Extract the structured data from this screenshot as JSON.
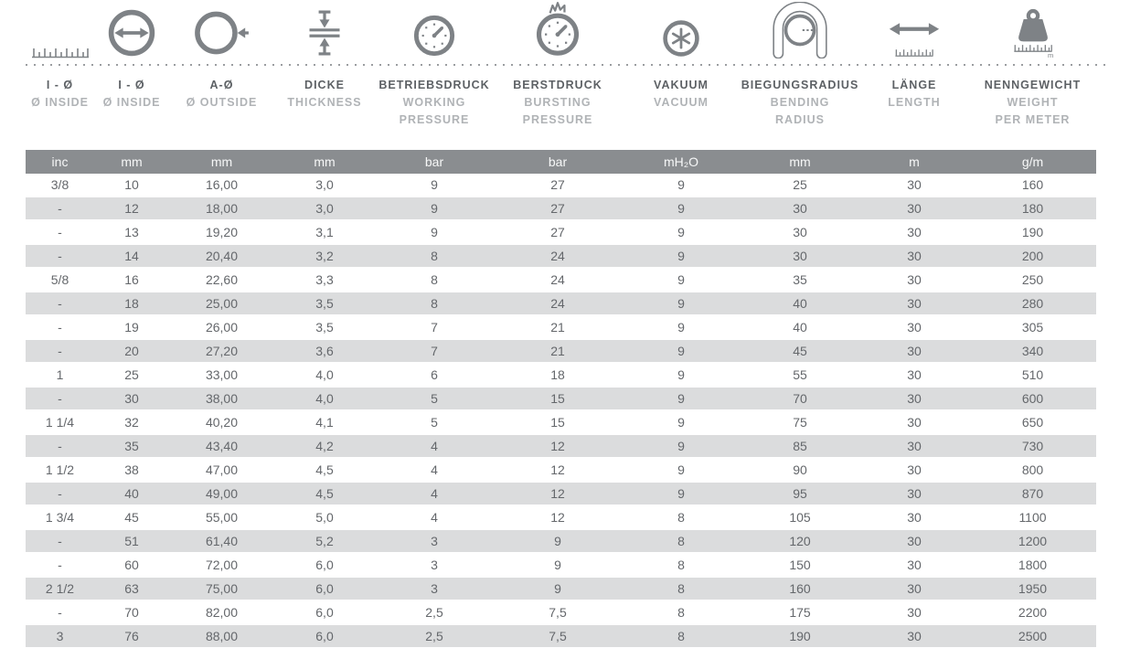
{
  "title": "Hose technical specification table",
  "colors": {
    "icon_gray": "#7e8286",
    "header_band_bg": "#8a8d90",
    "header_band_text": "#f7f8f8",
    "alt_row_bg": "#dbdcdd",
    "data_text": "#64676b",
    "label_de_text": "#5d6165",
    "label_en_text": "#b0b3b6"
  },
  "columns": [
    {
      "id": "inside-inc",
      "icon": "ruler-icon",
      "title_de": "I - Ø",
      "title_en": "Ø INSIDE",
      "unit": "inc"
    },
    {
      "id": "inside-mm",
      "icon": "inside-diameter-icon",
      "title_de": "I - Ø",
      "title_en": "Ø INSIDE",
      "unit": "mm"
    },
    {
      "id": "outside-mm",
      "icon": "outside-diameter-icon",
      "title_de": "A-Ø",
      "title_en": "Ø OUTSIDE",
      "unit": "mm"
    },
    {
      "id": "thickness",
      "icon": "thickness-icon",
      "title_de": "DICKE",
      "title_en": "THICKNESS",
      "unit": "mm"
    },
    {
      "id": "working-pressure",
      "icon": "pressure-gauge-icon",
      "title_de": "BETRIEBSDRUCK",
      "title_en": "WORKING\nPRESSURE",
      "unit": "bar"
    },
    {
      "id": "bursting-pressure",
      "icon": "bursting-gauge-icon",
      "title_de": "BERSTDRUCK",
      "title_en": "BURSTING\nPRESSURE",
      "unit": "bar"
    },
    {
      "id": "vacuum",
      "icon": "vacuum-icon",
      "title_de": "VAKUUM",
      "title_en": "VACUUM",
      "unit": "mH₂O"
    },
    {
      "id": "bending-radius",
      "icon": "bending-radius-icon",
      "title_de": "BIEGUNGSRADIUS",
      "title_en": "BENDING\nRADIUS",
      "unit": "mm"
    },
    {
      "id": "length",
      "icon": "length-icon",
      "title_de": "LÄNGE",
      "title_en": "LENGTH",
      "unit": "m"
    },
    {
      "id": "weight-per-meter",
      "icon": "weight-icon",
      "title_de": "NENNGEWICHT",
      "title_en": "WEIGHT\nPER METER",
      "unit": "g/m"
    }
  ],
  "weight_icon_ruler_label": "m",
  "rows": [
    [
      "3/8",
      "10",
      "16,00",
      "3,0",
      "9",
      "27",
      "9",
      "25",
      "30",
      "160"
    ],
    [
      "-",
      "12",
      "18,00",
      "3,0",
      "9",
      "27",
      "9",
      "30",
      "30",
      "180"
    ],
    [
      "-",
      "13",
      "19,20",
      "3,1",
      "9",
      "27",
      "9",
      "30",
      "30",
      "190"
    ],
    [
      "-",
      "14",
      "20,40",
      "3,2",
      "8",
      "24",
      "9",
      "30",
      "30",
      "200"
    ],
    [
      "5/8",
      "16",
      "22,60",
      "3,3",
      "8",
      "24",
      "9",
      "35",
      "30",
      "250"
    ],
    [
      "-",
      "18",
      "25,00",
      "3,5",
      "8",
      "24",
      "9",
      "40",
      "30",
      "280"
    ],
    [
      "-",
      "19",
      "26,00",
      "3,5",
      "7",
      "21",
      "9",
      "40",
      "30",
      "305"
    ],
    [
      "-",
      "20",
      "27,20",
      "3,6",
      "7",
      "21",
      "9",
      "45",
      "30",
      "340"
    ],
    [
      "1",
      "25",
      "33,00",
      "4,0",
      "6",
      "18",
      "9",
      "55",
      "30",
      "510"
    ],
    [
      "-",
      "30",
      "38,00",
      "4,0",
      "5",
      "15",
      "9",
      "70",
      "30",
      "600"
    ],
    [
      "1 1/4",
      "32",
      "40,20",
      "4,1",
      "5",
      "15",
      "9",
      "75",
      "30",
      "650"
    ],
    [
      "-",
      "35",
      "43,40",
      "4,2",
      "4",
      "12",
      "9",
      "85",
      "30",
      "730"
    ],
    [
      "1 1/2",
      "38",
      "47,00",
      "4,5",
      "4",
      "12",
      "9",
      "90",
      "30",
      "800"
    ],
    [
      "-",
      "40",
      "49,00",
      "4,5",
      "4",
      "12",
      "9",
      "95",
      "30",
      "870"
    ],
    [
      "1 3/4",
      "45",
      "55,00",
      "5,0",
      "4",
      "12",
      "8",
      "105",
      "30",
      "1100"
    ],
    [
      "-",
      "51",
      "61,40",
      "5,2",
      "3",
      "9",
      "8",
      "120",
      "30",
      "1200"
    ],
    [
      "-",
      "60",
      "72,00",
      "6,0",
      "3",
      "9",
      "8",
      "150",
      "30",
      "1800"
    ],
    [
      "2 1/2",
      "63",
      "75,00",
      "6,0",
      "3",
      "9",
      "8",
      "160",
      "30",
      "1950"
    ],
    [
      "-",
      "70",
      "82,00",
      "6,0",
      "2,5",
      "7,5",
      "8",
      "175",
      "30",
      "2200"
    ],
    [
      "3",
      "76",
      "88,00",
      "6,0",
      "2,5",
      "7,5",
      "8",
      "190",
      "30",
      "2500"
    ]
  ]
}
